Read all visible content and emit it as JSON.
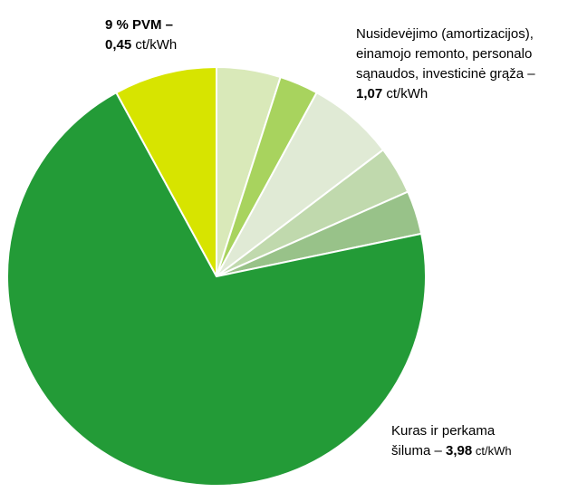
{
  "chart_data": {
    "type": "pie",
    "values": [
      0.28,
      0.17,
      0.38,
      0.21,
      0.19,
      3.98,
      0.45
    ],
    "colors": [
      "#d9e9b9",
      "#a8d35e",
      "#e0ead5",
      "#c0d9ad",
      "#98c289",
      "#239b37",
      "#d7e400"
    ],
    "annotations": [
      {
        "lines": [
          [
            {
              "text": "9 % PVM –",
              "bold": true
            }
          ],
          [
            {
              "text": "0,45",
              "bold": true
            },
            {
              "text": " ct/kWh",
              "bold": false
            }
          ]
        ]
      },
      {
        "lines": [
          [
            {
              "text": "Nusidevėjimo (amortizacijos),",
              "bold": false
            }
          ],
          [
            {
              "text": "einamojo remonto, personalo",
              "bold": false
            }
          ],
          [
            {
              "text": "sąnaudos, investicinė grąža –",
              "bold": false
            }
          ],
          [
            {
              "text": "1,07",
              "bold": true
            },
            {
              "text": " ct/kWh",
              "bold": false
            }
          ]
        ]
      },
      {
        "lines": [
          [
            {
              "text": "Kuras ir perkama",
              "bold": false
            }
          ],
          [
            {
              "text": "šiluma – ",
              "bold": false
            },
            {
              "text": "3,98",
              "bold": true
            },
            {
              "text": " ct/kWh",
              "bold": false,
              "small": true
            }
          ]
        ]
      }
    ]
  }
}
